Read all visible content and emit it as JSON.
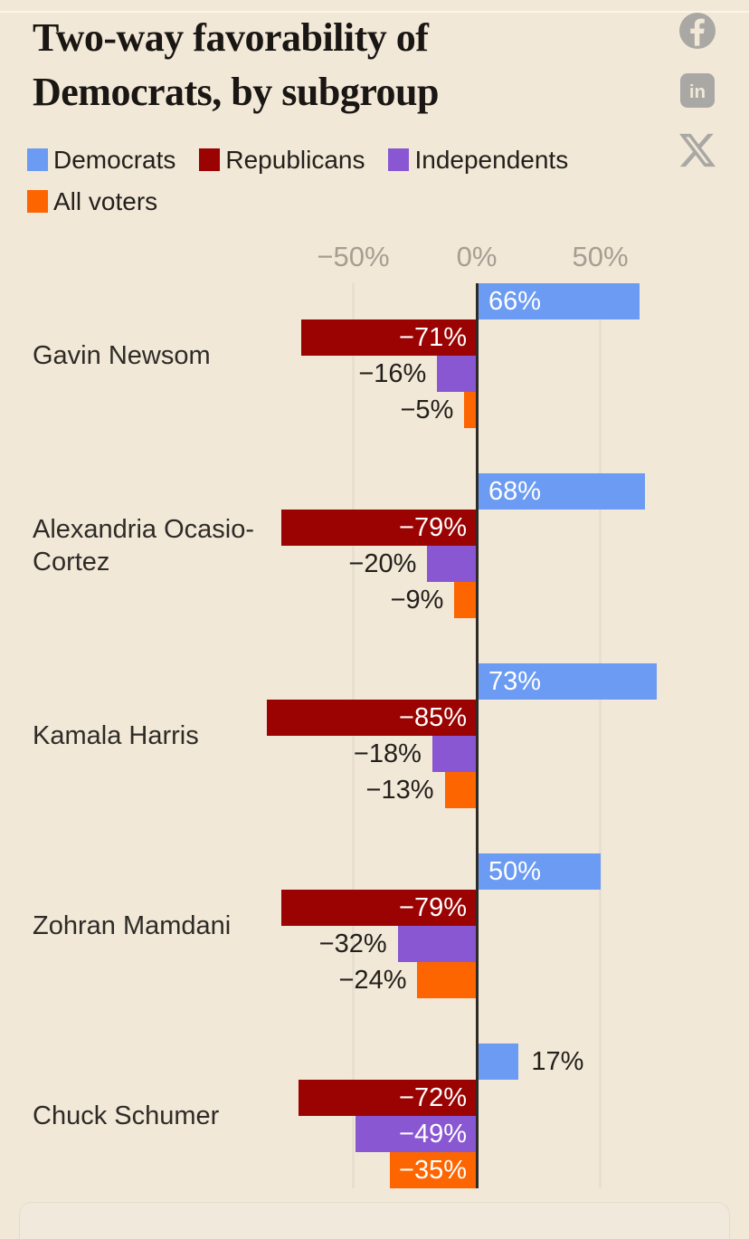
{
  "page": {
    "background": "#f2e8d7"
  },
  "header": {
    "title_lines": [
      "Two-way favorability of",
      "Democrats, by subgroup"
    ],
    "share_icons": [
      {
        "name": "facebook"
      },
      {
        "name": "linkedin"
      },
      {
        "name": "x"
      }
    ],
    "icon_color": "#a9a8a4"
  },
  "legend": {
    "items": [
      {
        "label": "Democrats",
        "color": "#6b9bf2"
      },
      {
        "label": "Republicans",
        "color": "#9a0301"
      },
      {
        "label": "Independents",
        "color": "#8a57d2"
      },
      {
        "label": "All voters",
        "color": "#fd6500"
      }
    ]
  },
  "chart_data": {
    "type": "bar",
    "orientation": "horizontal",
    "title": "Two-way favorability of Democrats, by subgroup",
    "categories": [
      "Gavin Newsom",
      "Alexandria Ocasio-Cortez",
      "Kamala Harris",
      "Zohran Mamdani",
      "Chuck Schumer"
    ],
    "series": [
      {
        "name": "Democrats",
        "color": "#6b9bf2",
        "values": [
          66,
          68,
          73,
          50,
          17
        ]
      },
      {
        "name": "Republicans",
        "color": "#9a0301",
        "values": [
          -71,
          -79,
          -85,
          -79,
          -72
        ]
      },
      {
        "name": "Independents",
        "color": "#8a57d2",
        "values": [
          -16,
          -20,
          -18,
          -32,
          -49
        ]
      },
      {
        "name": "All voters",
        "color": "#fd6500",
        "values": [
          -5,
          -9,
          -13,
          -24,
          -35
        ]
      }
    ],
    "x_ticks": [
      {
        "value": -50,
        "label": "−50%"
      },
      {
        "value": 0,
        "label": "0%"
      },
      {
        "value": 50,
        "label": "50%"
      }
    ],
    "xlim": [
      -96.5,
      110.5
    ],
    "value_suffix": "%",
    "grid": true,
    "legend_position": "top-left",
    "colors": {
      "axis": "#2e2a26",
      "grid": "#e8dfd1",
      "tick_text": "#a69e92",
      "value_label_dark": "#23201c",
      "value_label_light": "#ffffff",
      "category_text": "#2e2b27"
    }
  }
}
